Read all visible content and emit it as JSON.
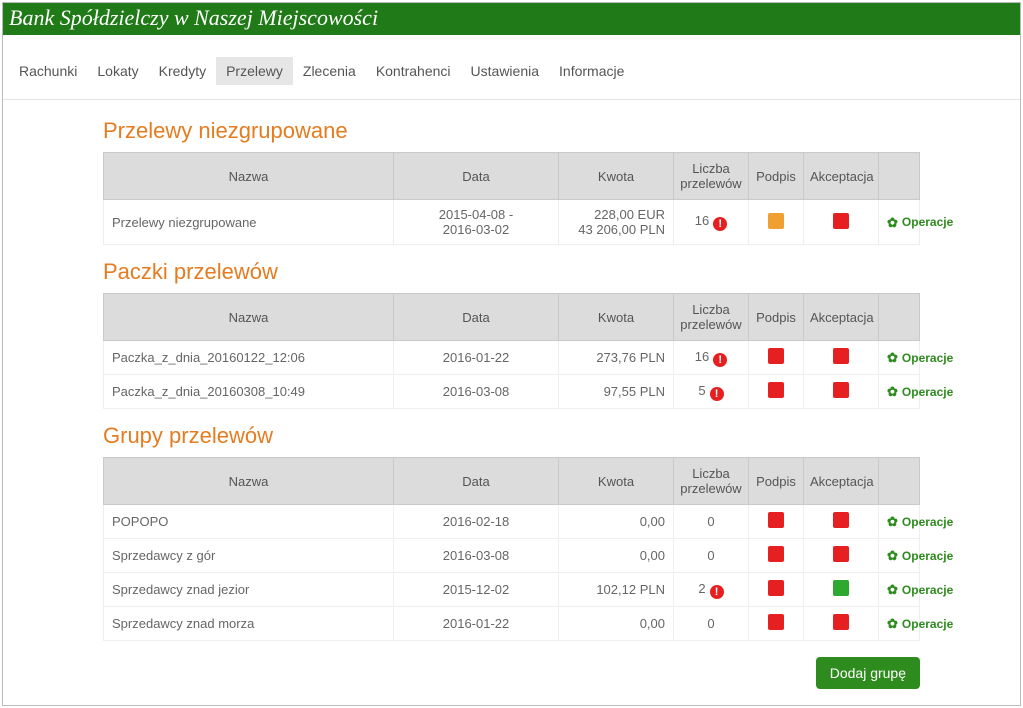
{
  "header": {
    "title": "Bank Spółdzielczy w Naszej Miejscowości"
  },
  "nav": {
    "items": [
      {
        "label": "Rachunki",
        "active": false
      },
      {
        "label": "Lokaty",
        "active": false
      },
      {
        "label": "Kredyty",
        "active": false
      },
      {
        "label": "Przelewy",
        "active": true
      },
      {
        "label": "Zlecenia",
        "active": false
      },
      {
        "label": "Kontrahenci",
        "active": false
      },
      {
        "label": "Ustawienia",
        "active": false
      },
      {
        "label": "Informacje",
        "active": false
      }
    ]
  },
  "colors": {
    "header_bg": "#1f7a17",
    "section_title": "#e57c1f",
    "status_red": "#e62020",
    "status_orange": "#f0a030",
    "status_green": "#2ea82e",
    "alert": "#e62020",
    "ops_green": "#2e8b1e",
    "btn_green": "#2e8b1e"
  },
  "table_headers": {
    "nazwa": "Nazwa",
    "data": "Data",
    "kwota": "Kwota",
    "liczba": "Liczba przelewów",
    "podpis": "Podpis",
    "akceptacja": "Akceptacja"
  },
  "labels": {
    "operacje": "Operacje",
    "dodaj_grupe": "Dodaj grupę"
  },
  "sections": [
    {
      "title": "Przelewy niezgrupowane",
      "rows": [
        {
          "name": "Przelewy niezgrupowane",
          "date_line1": "2015-04-08 -",
          "date_line2": "2016-03-02",
          "amount_line1": "228,00 EUR",
          "amount_line2": "43 206,00 PLN",
          "count": "16",
          "alert": true,
          "podpis_color": "#f0a030",
          "akceptacja_color": "#e62020"
        }
      ]
    },
    {
      "title": "Paczki przelewów",
      "rows": [
        {
          "name": "Paczka_z_dnia_20160122_12:06",
          "date_line1": "2016-01-22",
          "amount_line1": "273,76 PLN",
          "count": "16",
          "alert": true,
          "podpis_color": "#e62020",
          "akceptacja_color": "#e62020"
        },
        {
          "name": "Paczka_z_dnia_20160308_10:49",
          "date_line1": "2016-03-08",
          "amount_line1": "97,55 PLN",
          "count": "5",
          "alert": true,
          "podpis_color": "#e62020",
          "akceptacja_color": "#e62020"
        }
      ]
    },
    {
      "title": "Grupy przelewów",
      "rows": [
        {
          "name": "POPOPO",
          "date_line1": "2016-02-18",
          "amount_line1": "0,00",
          "count": "0",
          "alert": false,
          "podpis_color": "#e62020",
          "akceptacja_color": "#e62020"
        },
        {
          "name": "Sprzedawcy z gór",
          "date_line1": "2016-03-08",
          "amount_line1": "0,00",
          "count": "0",
          "alert": false,
          "podpis_color": "#e62020",
          "akceptacja_color": "#e62020"
        },
        {
          "name": "Sprzedawcy znad jezior",
          "date_line1": "2015-12-02",
          "amount_line1": "102,12 PLN",
          "count": "2",
          "alert": true,
          "podpis_color": "#e62020",
          "akceptacja_color": "#2ea82e"
        },
        {
          "name": "Sprzedawcy znad morza",
          "date_line1": "2016-01-22",
          "amount_line1": "0,00",
          "count": "0",
          "alert": false,
          "podpis_color": "#e62020",
          "akceptacja_color": "#e62020"
        }
      ]
    }
  ]
}
